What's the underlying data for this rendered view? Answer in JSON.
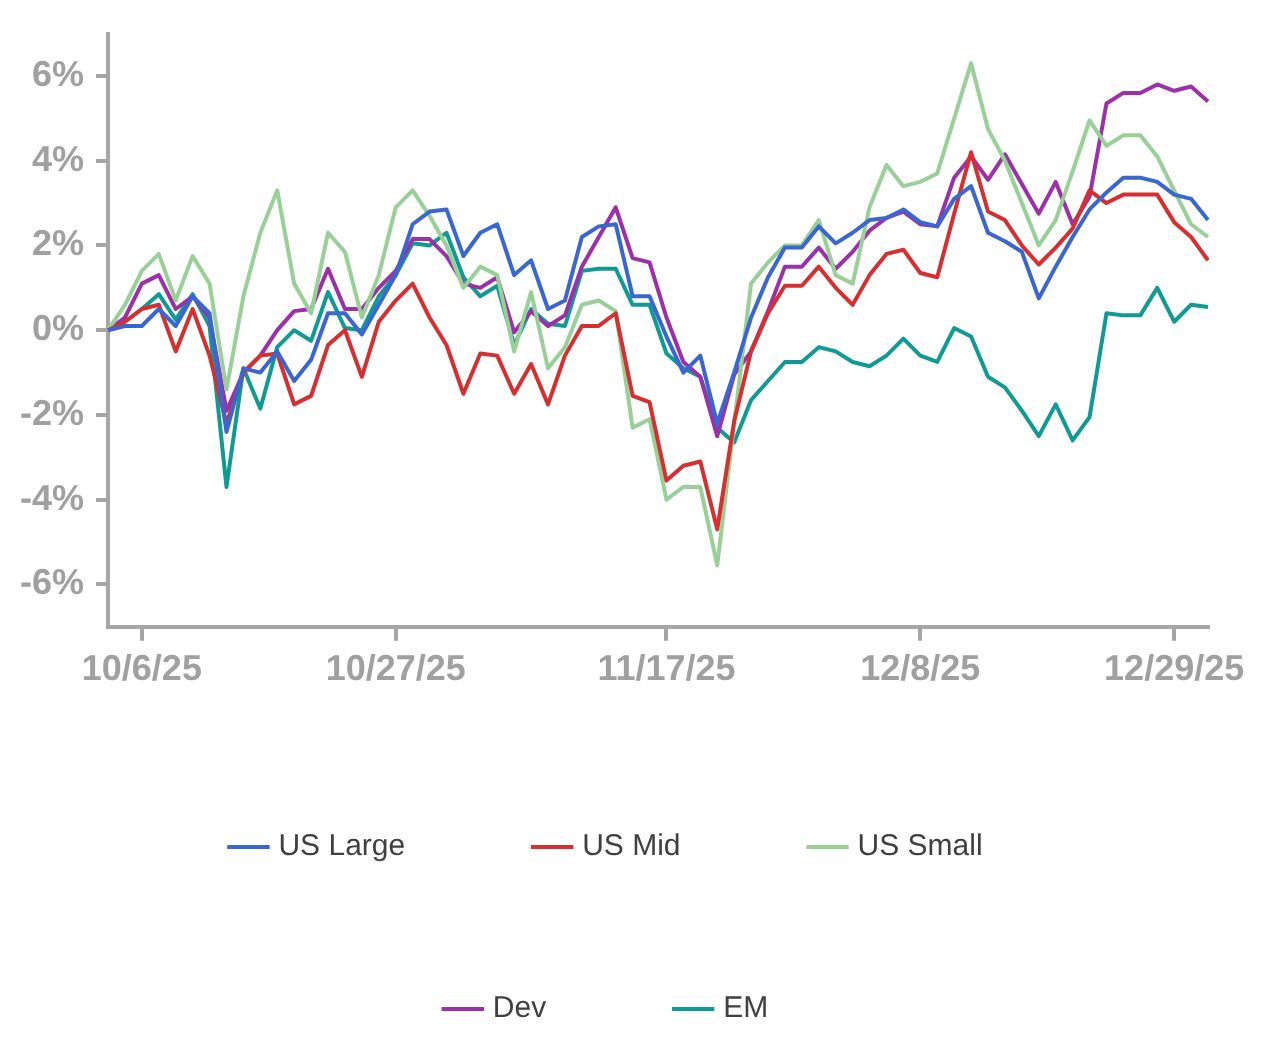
{
  "chart_data": {
    "type": "line",
    "categories": [
      null,
      null,
      "10/6/25",
      null,
      null,
      null,
      null,
      null,
      null,
      null,
      null,
      null,
      null,
      null,
      null,
      null,
      null,
      "10/27/25",
      null,
      null,
      null,
      null,
      null,
      null,
      null,
      null,
      null,
      null,
      null,
      null,
      null,
      null,
      null,
      "11/17/25",
      null,
      null,
      null,
      null,
      null,
      null,
      null,
      null,
      null,
      null,
      null,
      null,
      null,
      null,
      "12/8/25",
      null,
      null,
      null,
      null,
      null,
      null,
      null,
      null,
      null,
      null,
      null,
      null,
      null,
      null,
      "12/29/25",
      null,
      null
    ],
    "series": [
      {
        "name": "US Large",
        "color": "#3a66d0",
        "values": [
          0,
          0.1,
          0.1,
          0.5,
          0.1,
          0.8,
          0.4,
          -2.4,
          -0.9,
          -1.0,
          -0.5,
          -1.2,
          -0.7,
          0.4,
          0.4,
          -0.1,
          0.6,
          1.3,
          2.5,
          2.8,
          2.85,
          1.75,
          2.3,
          2.5,
          1.3,
          1.65,
          0.5,
          0.7,
          2.2,
          2.45,
          2.5,
          0.8,
          0.8,
          -0.15,
          -1.0,
          -0.6,
          -2.2,
          -1.0,
          0.3,
          1.25,
          1.95,
          1.95,
          2.45,
          2.05,
          2.3,
          2.6,
          2.65,
          2.85,
          2.55,
          2.45,
          3.1,
          3.4,
          2.3,
          2.1,
          1.85,
          0.75,
          1.5,
          2.2,
          2.85,
          3.25,
          3.6,
          3.6,
          3.5,
          3.2,
          3.1,
          2.6
        ]
      },
      {
        "name": "US Mid",
        "color": "#d62f2f",
        "values": [
          0,
          0.2,
          0.5,
          0.6,
          -0.5,
          0.5,
          -0.6,
          -2.2,
          -1.0,
          -0.6,
          -0.55,
          -1.75,
          -1.55,
          -0.35,
          0.0,
          -1.1,
          0.2,
          0.7,
          1.1,
          0.3,
          -0.35,
          -1.5,
          -0.55,
          -0.6,
          -1.5,
          -0.8,
          -1.75,
          -0.6,
          0.1,
          0.1,
          0.4,
          -1.55,
          -1.7,
          -3.55,
          -3.2,
          -3.1,
          -4.7,
          -2.15,
          -0.5,
          0.4,
          1.05,
          1.05,
          1.5,
          1.0,
          0.6,
          1.3,
          1.8,
          1.9,
          1.35,
          1.25,
          2.75,
          4.2,
          2.8,
          2.6,
          2.0,
          1.55,
          1.95,
          2.4,
          3.3,
          3.0,
          3.2,
          3.2,
          3.2,
          2.55,
          2.2,
          1.65
        ]
      },
      {
        "name": "US Small",
        "color": "#99d098",
        "values": [
          0,
          0.6,
          1.4,
          1.8,
          0.7,
          1.75,
          1.1,
          -1.4,
          0.8,
          2.3,
          3.3,
          1.1,
          0.4,
          2.3,
          1.85,
          0.3,
          1.3,
          2.9,
          3.3,
          2.7,
          2.0,
          1.0,
          1.5,
          1.3,
          -0.5,
          0.9,
          -0.9,
          -0.4,
          0.6,
          0.7,
          0.45,
          -2.3,
          -2.1,
          -4.0,
          -3.7,
          -3.7,
          -5.55,
          -2.2,
          1.1,
          1.6,
          2.0,
          2.0,
          2.6,
          1.3,
          1.1,
          2.9,
          3.9,
          3.4,
          3.5,
          3.7,
          5.0,
          6.3,
          4.75,
          4.0,
          3.0,
          2.0,
          2.6,
          3.75,
          4.95,
          4.35,
          4.6,
          4.6,
          4.1,
          3.3,
          2.5,
          2.2
        ]
      },
      {
        "name": "Dev",
        "color": "#9b30a8",
        "values": [
          0,
          0.3,
          1.1,
          1.3,
          0.5,
          0.8,
          0.3,
          -1.9,
          -1.0,
          -0.6,
          0.0,
          0.45,
          0.5,
          1.45,
          0.5,
          0.5,
          1.0,
          1.4,
          2.15,
          2.15,
          1.75,
          1.1,
          1.0,
          1.25,
          -0.05,
          0.45,
          0.1,
          0.35,
          1.5,
          2.2,
          2.9,
          1.7,
          1.6,
          0.3,
          -0.75,
          -1.1,
          -2.5,
          -1.05,
          -0.5,
          0.45,
          1.5,
          1.5,
          1.95,
          1.45,
          1.85,
          2.35,
          2.65,
          2.8,
          2.5,
          2.45,
          3.6,
          4.1,
          3.55,
          4.15,
          3.45,
          2.75,
          3.5,
          2.5,
          3.15,
          5.35,
          5.6,
          5.6,
          5.8,
          5.65,
          5.75,
          5.4
        ]
      },
      {
        "name": "EM",
        "color": "#0f9b94",
        "values": [
          0,
          0.2,
          0.5,
          0.85,
          0.25,
          0.85,
          0.1,
          -3.7,
          -0.9,
          -1.85,
          -0.4,
          0.0,
          -0.25,
          0.9,
          0.05,
          0.0,
          0.8,
          1.3,
          2.05,
          2.0,
          2.3,
          1.25,
          0.8,
          1.05,
          -0.35,
          0.5,
          0.15,
          0.1,
          1.4,
          1.45,
          1.45,
          0.6,
          0.6,
          -0.55,
          -0.9,
          -1.1,
          -2.3,
          -2.65,
          -1.65,
          -1.2,
          -0.75,
          -0.75,
          -0.4,
          -0.5,
          -0.75,
          -0.85,
          -0.6,
          -0.2,
          -0.6,
          -0.75,
          0.05,
          -0.15,
          -1.1,
          -1.35,
          -1.9,
          -2.5,
          -1.75,
          -2.6,
          -2.05,
          0.4,
          0.35,
          0.35,
          1.0,
          0.2,
          0.6,
          0.55
        ]
      }
    ],
    "ylim": [
      -7,
      7
    ],
    "yticks": [
      {
        "value": -6,
        "label": "-6%"
      },
      {
        "value": -4,
        "label": "-4%"
      },
      {
        "value": -2,
        "label": "-2%"
      },
      {
        "value": 0,
        "label": "0%"
      },
      {
        "value": 2,
        "label": "2%"
      },
      {
        "value": 4,
        "label": "4%"
      },
      {
        "value": 6,
        "label": "6%"
      }
    ],
    "grid": false,
    "legend": "bottom",
    "marker": "none",
    "line_style": "solid"
  }
}
